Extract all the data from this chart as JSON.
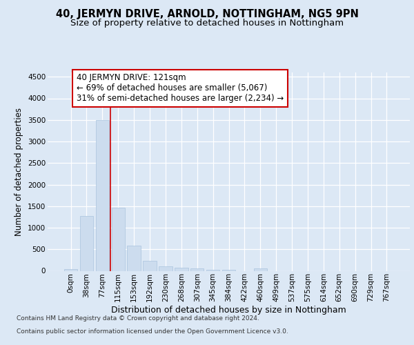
{
  "title": "40, JERMYN DRIVE, ARNOLD, NOTTINGHAM, NG5 9PN",
  "subtitle": "Size of property relative to detached houses in Nottingham",
  "xlabel": "Distribution of detached houses by size in Nottingham",
  "ylabel": "Number of detached properties",
  "footer_line1": "Contains HM Land Registry data © Crown copyright and database right 2024.",
  "footer_line2": "Contains public sector information licensed under the Open Government Licence v3.0.",
  "bar_labels": [
    "0sqm",
    "38sqm",
    "77sqm",
    "115sqm",
    "153sqm",
    "192sqm",
    "230sqm",
    "268sqm",
    "307sqm",
    "345sqm",
    "384sqm",
    "422sqm",
    "460sqm",
    "499sqm",
    "537sqm",
    "575sqm",
    "614sqm",
    "652sqm",
    "690sqm",
    "729sqm",
    "767sqm"
  ],
  "bar_values": [
    40,
    1270,
    3500,
    1460,
    580,
    240,
    110,
    75,
    50,
    30,
    30,
    0,
    50,
    0,
    0,
    0,
    0,
    0,
    0,
    0,
    0
  ],
  "bar_color": "#ccdcee",
  "bar_edgecolor": "#aac4de",
  "vline_pos": 2.5,
  "vline_color": "#cc0000",
  "annotation_text": "40 JERMYN DRIVE: 121sqm\n← 69% of detached houses are smaller (5,067)\n31% of semi-detached houses are larger (2,234) →",
  "annotation_box_facecolor": "#ffffff",
  "annotation_box_edgecolor": "#cc0000",
  "ylim_max": 4600,
  "yticks": [
    0,
    500,
    1000,
    1500,
    2000,
    2500,
    3000,
    3500,
    4000,
    4500
  ],
  "bg_color": "#dce8f5",
  "title_fontsize": 10.5,
  "subtitle_fontsize": 9.5,
  "ylabel_fontsize": 8.5,
  "xlabel_fontsize": 9,
  "tick_fontsize": 7.5,
  "footer_fontsize": 6.5,
  "annotation_fontsize": 8.5
}
